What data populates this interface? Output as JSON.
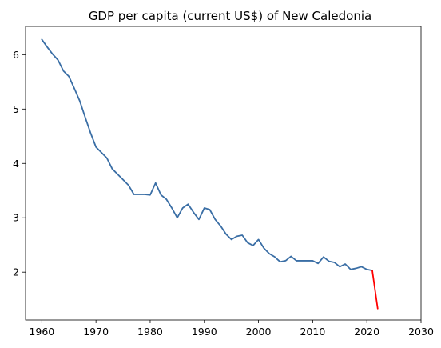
{
  "chart_data": {
    "type": "line",
    "title": "GDP per capita (current US$) of New Caledonia",
    "xlabel": "",
    "ylabel": "",
    "xlim": [
      1957,
      2030
    ],
    "ylim": [
      1.12,
      6.52
    ],
    "x_ticks": [
      1960,
      1970,
      1980,
      1990,
      2000,
      2010,
      2020,
      2030
    ],
    "y_ticks": [
      2,
      3,
      4,
      5,
      6
    ],
    "grid": false,
    "colors": {
      "main": "#3a6ea5",
      "highlight": "#ff0000"
    },
    "series": [
      {
        "color": "#3a6ea5",
        "x": [
          1960,
          1961,
          1962,
          1963,
          1964,
          1965,
          1966,
          1967,
          1968,
          1969,
          1970,
          1971,
          1972,
          1973,
          1974,
          1975,
          1976,
          1977,
          1978,
          1979,
          1980,
          1981,
          1982,
          1983,
          1984,
          1985,
          1986,
          1987,
          1988,
          1989,
          1990,
          1991,
          1992,
          1993,
          1994,
          1995,
          1996,
          1997,
          1998,
          1999,
          2000,
          2001,
          2002,
          2003,
          2004,
          2005,
          2006,
          2007,
          2008,
          2009,
          2010,
          2011,
          2012,
          2013,
          2014,
          2015,
          2016,
          2017,
          2018,
          2019,
          2020,
          2021
        ],
        "y": [
          6.28,
          6.14,
          6.01,
          5.9,
          5.7,
          5.6,
          5.38,
          5.15,
          4.85,
          4.56,
          4.3,
          4.2,
          4.1,
          3.9,
          3.8,
          3.7,
          3.6,
          3.43,
          3.43,
          3.43,
          3.42,
          3.64,
          3.42,
          3.34,
          3.18,
          3.0,
          3.18,
          3.25,
          3.1,
          2.97,
          3.18,
          3.15,
          2.97,
          2.85,
          2.7,
          2.6,
          2.66,
          2.68,
          2.54,
          2.49,
          2.6,
          2.44,
          2.34,
          2.28,
          2.19,
          2.21,
          2.29,
          2.21,
          2.21,
          2.21,
          2.21,
          2.16,
          2.28,
          2.2,
          2.18,
          2.1,
          2.15,
          2.05,
          2.07,
          2.1,
          2.05,
          2.03
        ]
      },
      {
        "color": "#ff0000",
        "x": [
          2021,
          2022
        ],
        "y": [
          2.03,
          1.33
        ]
      }
    ]
  }
}
